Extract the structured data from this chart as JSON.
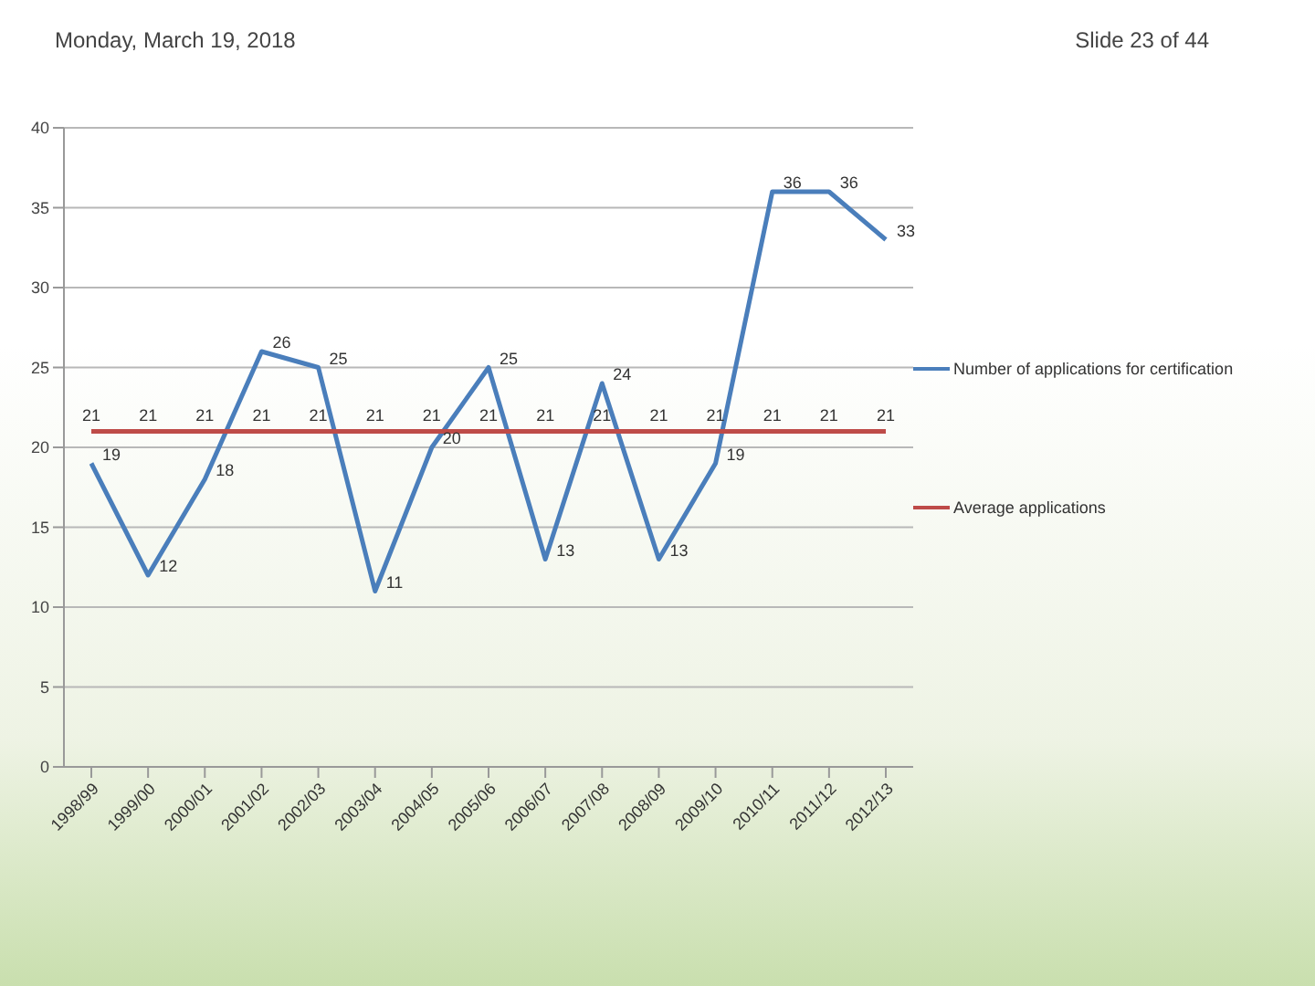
{
  "chart_data": {
    "type": "line",
    "annotations": [
      "Monday, March 19, 2018",
      "Slide 23 of 44"
    ],
    "categories": [
      "1998/99",
      "1999/00",
      "2000/01",
      "2001/02",
      "2002/03",
      "2003/04",
      "2004/05",
      "2005/06",
      "2006/07",
      "2007/08",
      "2008/09",
      "2009/10",
      "2010/11",
      "2011/12",
      "2012/13"
    ],
    "series": [
      {
        "name": "Number of applications for certification",
        "color": "#4a7ebb",
        "values": [
          19,
          12,
          18,
          26,
          25,
          11,
          20,
          25,
          13,
          24,
          13,
          19,
          36,
          36,
          33
        ]
      },
      {
        "name": "Average applications",
        "color": "#be4b48",
        "values": [
          21,
          21,
          21,
          21,
          21,
          21,
          21,
          21,
          21,
          21,
          21,
          21,
          21,
          21,
          21
        ]
      }
    ],
    "ylim": [
      0,
      40
    ],
    "yticks": [
      0,
      5,
      10,
      15,
      20,
      25,
      30,
      35,
      40
    ],
    "grid": "y",
    "legend": "right",
    "data_labels": true,
    "marker": "none",
    "line_style": "solid"
  }
}
